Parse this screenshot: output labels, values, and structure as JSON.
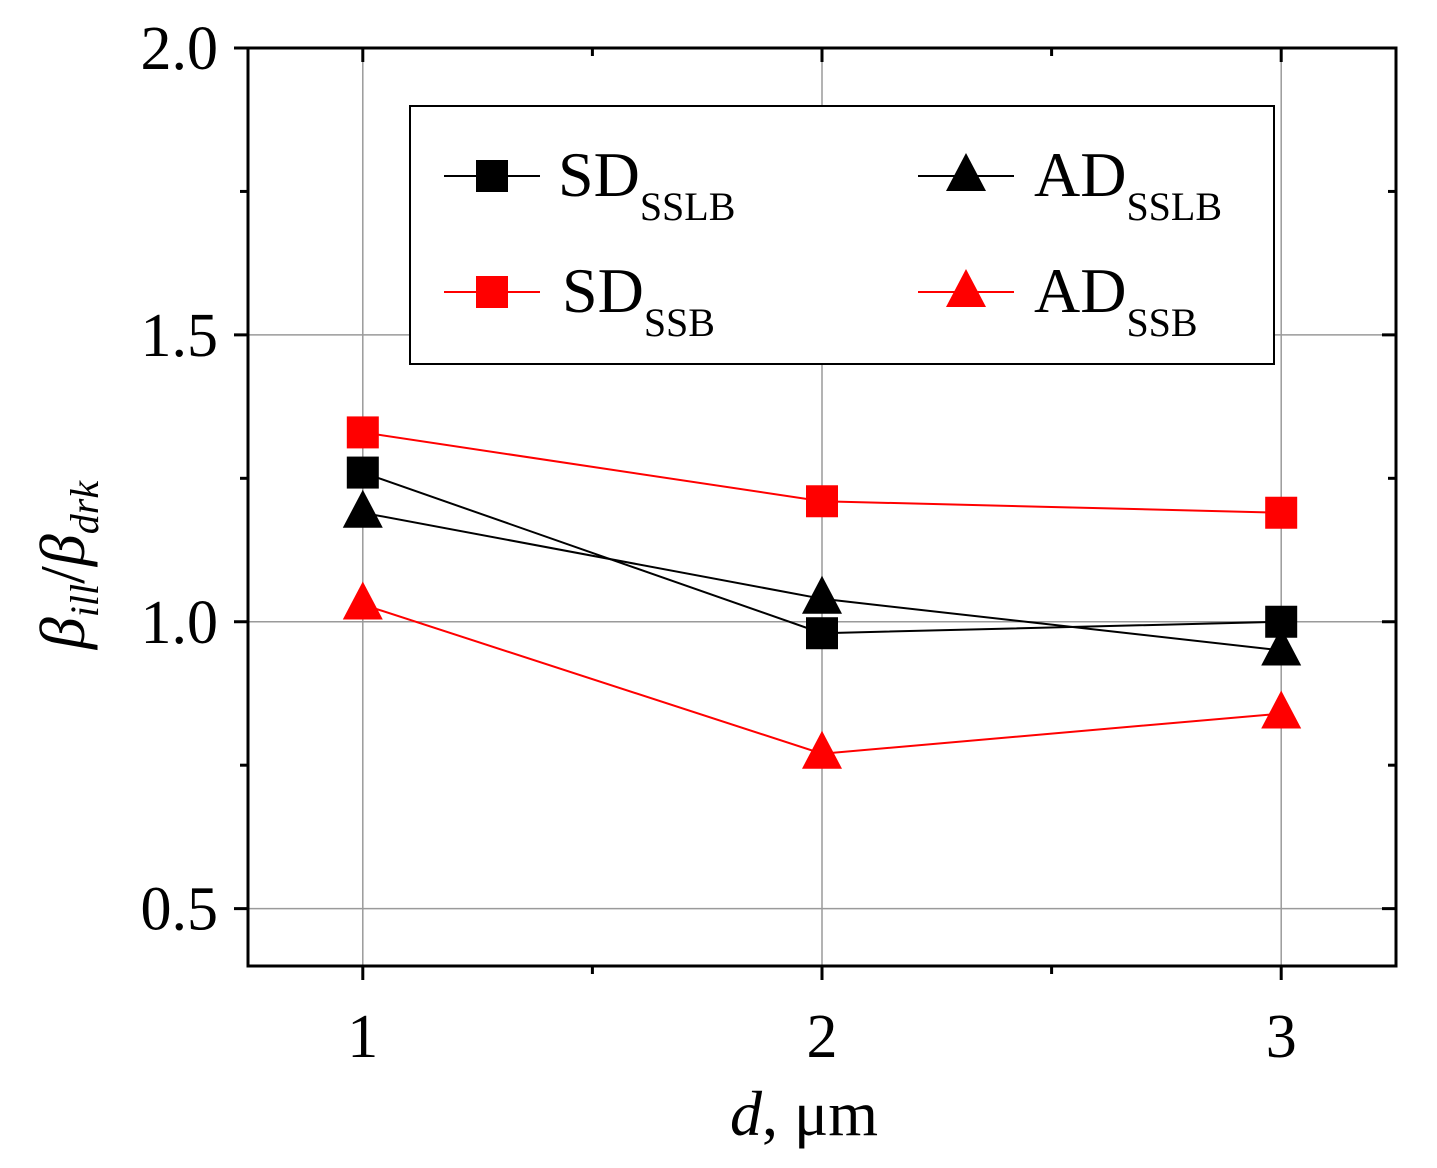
{
  "chart_data": {
    "type": "line",
    "x": [
      1,
      2,
      3
    ],
    "xticks": [
      "1",
      "2",
      "3"
    ],
    "yticks": [
      "0.5",
      "1.0",
      "1.5",
      "2.0"
    ],
    "ytick_values": [
      0.5,
      1.0,
      1.5,
      2.0
    ],
    "xlim": [
      0.75,
      3.25
    ],
    "ylim": [
      0.4,
      2.0
    ],
    "xlabel": {
      "italic": "d",
      "rest": ", μm"
    },
    "ylabel": {
      "sym1": "β",
      "sub1": "ill",
      "sep": "/",
      "sym2": "β",
      "sub2": "drk"
    },
    "grid": true,
    "legend_position": "top",
    "series": [
      {
        "name": "SD",
        "sub": "SSLB",
        "marker": "square",
        "color": "#000000",
        "values": [
          1.26,
          0.98,
          1.0
        ]
      },
      {
        "name": "AD",
        "sub": "SSLB",
        "marker": "triangle",
        "color": "#000000",
        "values": [
          1.19,
          1.04,
          0.95
        ]
      },
      {
        "name": "SD",
        "sub": "SSB",
        "marker": "square",
        "color": "#ff0000",
        "values": [
          1.33,
          1.21,
          1.19
        ]
      },
      {
        "name": "AD",
        "sub": "SSB",
        "marker": "triangle",
        "color": "#ff0000",
        "values": [
          1.03,
          0.77,
          0.84
        ]
      }
    ]
  }
}
